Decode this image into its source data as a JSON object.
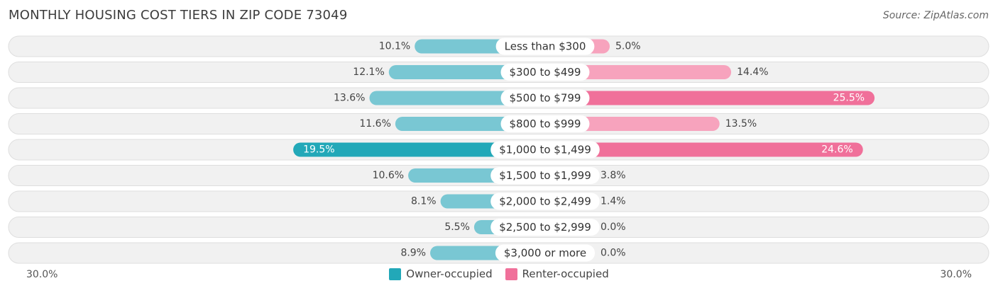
{
  "header": {
    "title": "MONTHLY HOUSING COST TIERS IN ZIP CODE 73049",
    "source": "Source: ZipAtlas.com"
  },
  "axis": {
    "left_label": "30.0%",
    "right_label": "30.0%"
  },
  "legend": {
    "owner_label": "Owner-occupied",
    "renter_label": "Renter-occupied"
  },
  "colors": {
    "owner_dark": "#22a8b8",
    "owner_light": "#79c7d3",
    "renter_dark": "#f0709a",
    "renter_light": "#f7a3bd",
    "row_bg": "#f1f1f1",
    "row_border": "#dedede"
  },
  "chart_data": {
    "type": "bar",
    "orientation": "horizontal-diverging",
    "title": "MONTHLY HOUSING COST TIERS IN ZIP CODE 73049",
    "xlim": [
      -30,
      30
    ],
    "categories": [
      "Less than $300",
      "$300 to $499",
      "$500 to $799",
      "$800 to $999",
      "$1,000 to $1,499",
      "$1,500 to $1,999",
      "$2,000 to $2,499",
      "$2,500 to $2,999",
      "$3,000 or more"
    ],
    "series": [
      {
        "name": "Owner-occupied",
        "values": [
          10.1,
          12.1,
          13.6,
          11.6,
          19.5,
          10.6,
          8.1,
          5.5,
          8.9
        ],
        "labels": [
          "10.1%",
          "12.1%",
          "13.6%",
          "11.6%",
          "19.5%",
          "10.6%",
          "8.1%",
          "5.5%",
          "8.9%"
        ]
      },
      {
        "name": "Renter-occupied",
        "values": [
          5.0,
          14.4,
          25.5,
          13.5,
          24.6,
          3.8,
          1.4,
          0.0,
          0.0
        ],
        "labels": [
          "5.0%",
          "14.4%",
          "25.5%",
          "13.5%",
          "24.6%",
          "3.8%",
          "1.4%",
          "0.0%",
          "0.0%"
        ]
      }
    ],
    "legend_position": "bottom-center"
  }
}
